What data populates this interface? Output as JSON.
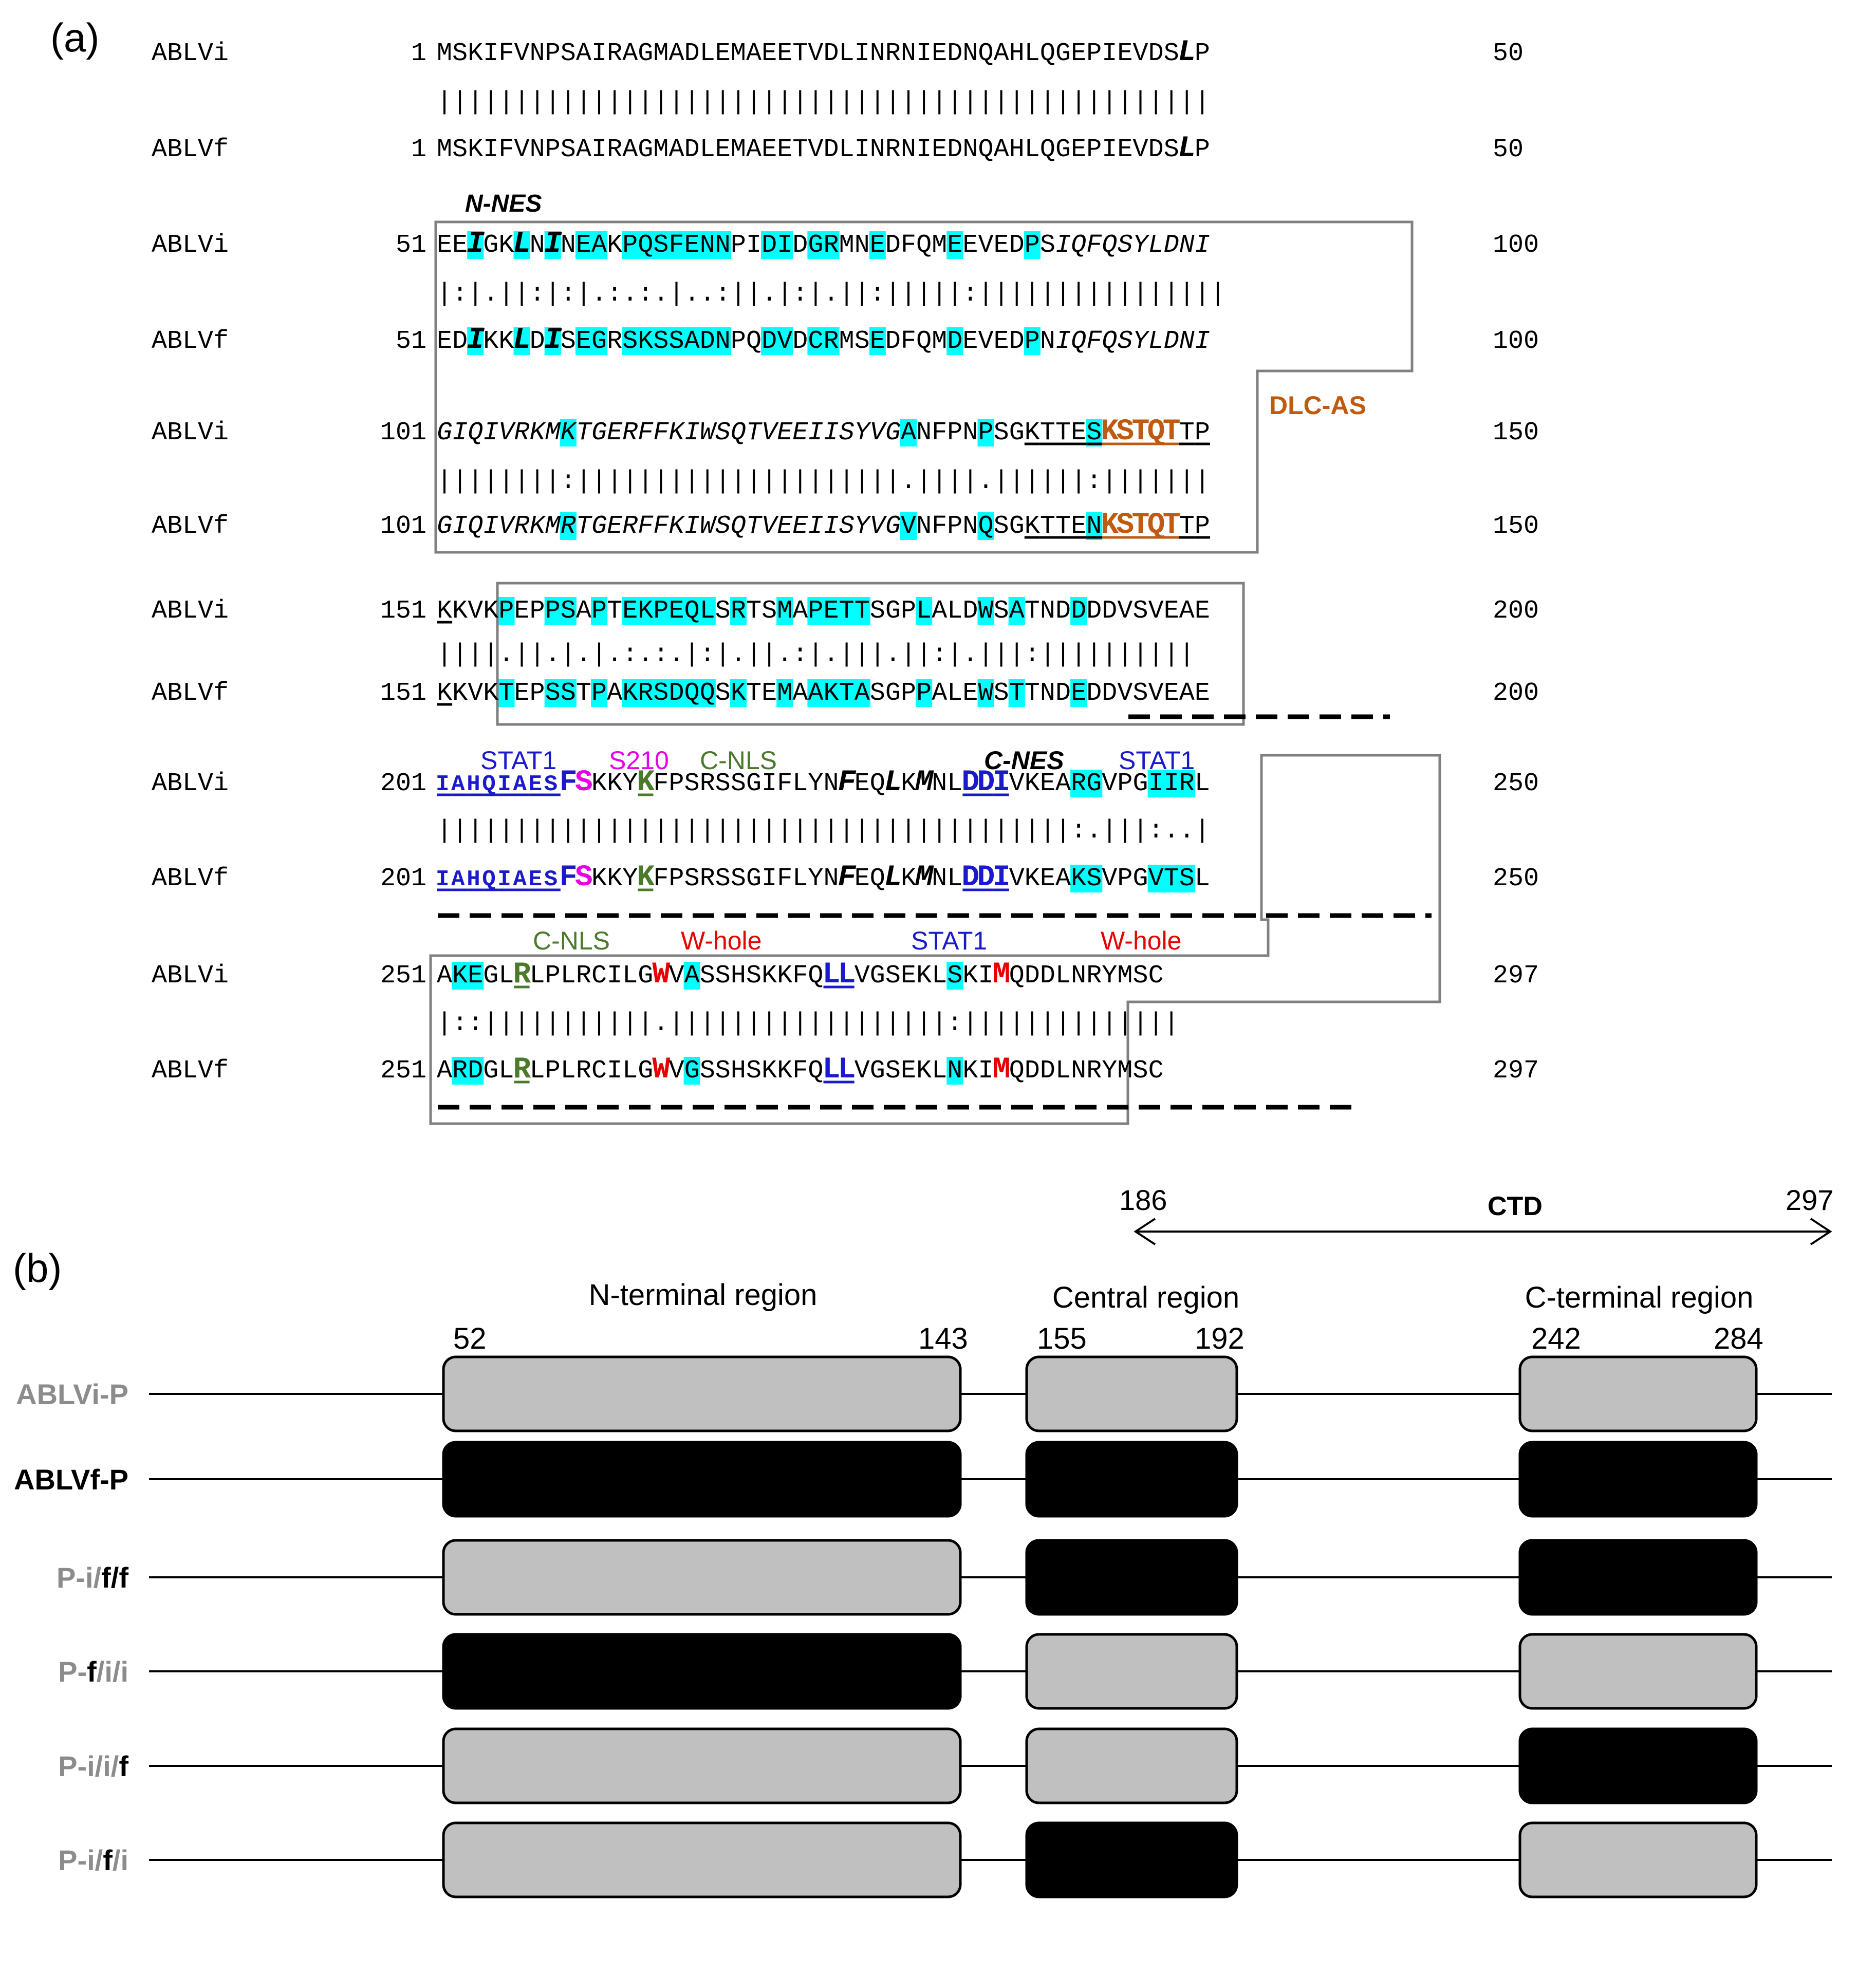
{
  "panel_a": {
    "label": "(a)",
    "annotations": {
      "n_nes": "N-NES",
      "c_nes": "C-NES",
      "dlc_as": "DLC-AS",
      "stat1_a": "STAT1",
      "s210": "S210",
      "c_nls_a": "C-NLS",
      "stat1_b": "STAT1",
      "c_nls_b": "C-NLS",
      "w_hole_a": "W-hole",
      "stat1_c": "STAT1",
      "w_hole_b": "W-hole"
    },
    "blocks": [
      {
        "id": "b1",
        "row1": {
          "name": "ABLVi",
          "start": "1",
          "seq": "MSKIFVNPSAIRAGMADLEMAEETVDLINRNIEDNQAHLQGEPIEVDSLP",
          "end": "50"
        },
        "match": "||||||||||||||||||||||||||||||||||||||||||||||||||",
        "row2": {
          "name": "ABLVf",
          "start": "1",
          "seq": "MSKIFVNPSAIRAGMADLEMAEETVDLINRNIEDNQAHLQGEPIEVDSLP",
          "end": "50"
        }
      },
      {
        "id": "b2",
        "row1": {
          "name": "ABLVi",
          "start": "51",
          "seq": "EEIGKLNINEAKPQSFENNPIDIDGRMNEDFQMEEVEDPSIQFQSYLDNI",
          "end": "100"
        },
        "match": "|:|.||:|:|.:.:.|..:||.|:|.||:|||||:||||||||||||||||",
        "row2": {
          "name": "ABLVf",
          "start": "51",
          "seq": "EDIKKLDISEGRSKSSADNPQDVDCRMSEDFQMDEVEDPNIQFQSYLDNI",
          "end": "100"
        }
      },
      {
        "id": "b3",
        "row1": {
          "name": "ABLVi",
          "start": "101",
          "seq": "GIQIVRKMKTGERFFKIWSQTVEEIISYVGANFPNPSGKTTESKSTQTTP",
          "end": "150"
        },
        "match": "||||||||:|||||||||||||||||||||.||||.||||||:|||||||",
        "row2": {
          "name": "ABLVf",
          "start": "101",
          "seq": "GIQIVRKMRTGERFFKIWSQTVEEIISYVGVNFPNQSGKTTENKSTQTTP",
          "end": "150"
        }
      },
      {
        "id": "b4",
        "row1": {
          "name": "ABLVi",
          "start": "151",
          "seq": "KKVKPEPPSAPTEKPEQLSRTSMAPETTSGPLALDWSATNDDDDVSVEAE",
          "end": "200"
        },
        "match": "||||.||.|.|.:.:.|:|.||.:|.|||.||:|.|||:||||||||||",
        "row2": {
          "name": "ABLVf",
          "start": "151",
          "seq": "KKVKTEPSSTPAKRSDQQSKTEMAAKTASGPPALEWSTTNDEDDVSVEAE",
          "end": "200"
        }
      },
      {
        "id": "b5",
        "row1": {
          "name": "ABLVi",
          "start": "201",
          "seq": "IAHQIAESFSKKYKFPSRSSGIFLYNFEQLKMNLDDIVKEARGVPGIIRL",
          "end": "250"
        },
        "match": "|||||||||||||||||||||||||||||||||||||||||:.|||:..|",
        "row2": {
          "name": "ABLVf",
          "start": "201",
          "seq": "IAHQIAESFSKKYKFPSRSSGIFLYNFEQLKMNLDDIVKEAKSVPGVTSL",
          "end": "250"
        }
      },
      {
        "id": "b6",
        "row1": {
          "name": "ABLVi",
          "start": "251",
          "seq": "AKEGLRLPLRCILGWVASSHSKKFQLLVGSEKLSKIMQDDLNRYMSC",
          "end": "297"
        },
        "match": "|::|||||||||||.||||||||||||||||||:||||||||||||||",
        "row2": {
          "name": "ABLVf",
          "start": "251",
          "seq": "ARDGLRLPLRCILGWVGSSHSKKFQLLVGSEKLNKIMQDDLNRYMSC",
          "end": "297"
        }
      }
    ]
  },
  "panel_b": {
    "label": "(b)",
    "ctd": {
      "label": "CTD",
      "start": "186",
      "end": "297"
    },
    "regions": [
      {
        "title": "N-terminal region",
        "start": "52",
        "end": "143"
      },
      {
        "title": "Central region",
        "start": "155",
        "end": "192"
      },
      {
        "title": "C-terminal region",
        "start": "242",
        "end": "284"
      }
    ],
    "rows": [
      {
        "label": "ABLVi-P",
        "pattern": [
          "i",
          "i",
          "i"
        ]
      },
      {
        "label": "ABLVf-P",
        "pattern": [
          "f",
          "f",
          "f"
        ]
      },
      {
        "label": "P-i/f/f",
        "pattern": [
          "i",
          "f",
          "f"
        ]
      },
      {
        "label": "P-f/i/i",
        "pattern": [
          "f",
          "i",
          "i"
        ]
      },
      {
        "label": "P-i/i/f",
        "pattern": [
          "i",
          "i",
          "f"
        ]
      },
      {
        "label": "P-i/f/i",
        "pattern": [
          "i",
          "f",
          "i"
        ]
      }
    ],
    "colors": {
      "i": "#c0c0c0",
      "f": "#000000",
      "i_label": "#8c8c8c",
      "f_label": "#000000"
    }
  },
  "colors": {
    "highlight": "#00ffff",
    "box": "#808080",
    "stat1": "#1a1acc",
    "s210": "#e600e6",
    "c_nls": "#4a7a2a",
    "w_hole": "#e60000",
    "dlc_as": "#c05a10"
  }
}
